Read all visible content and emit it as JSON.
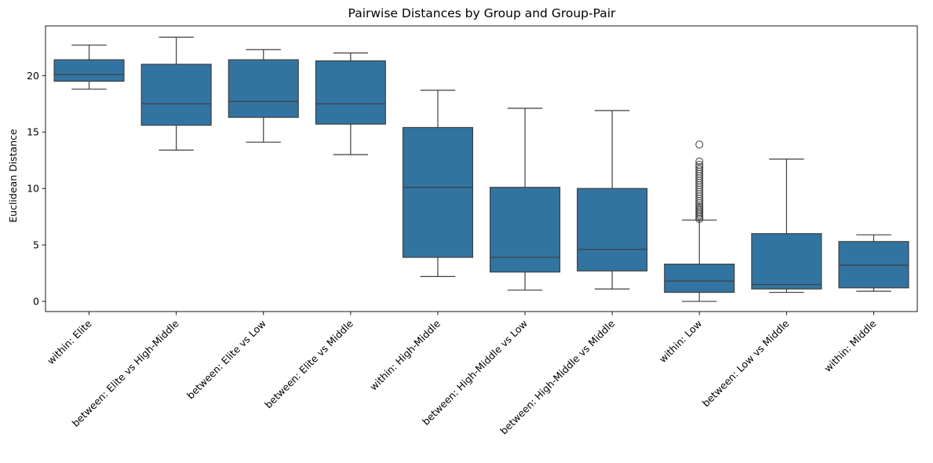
{
  "chart_data": {
    "type": "box",
    "title": "Pairwise Distances by Group and Group-Pair",
    "xlabel": "",
    "ylabel": "Euclidean Distance",
    "ylim": [
      -0.9,
      24.4
    ],
    "yticks": [
      0,
      5,
      10,
      15,
      20
    ],
    "grid": false,
    "color": "#3274a1",
    "categories": [
      "within: Elite",
      "between: Elite vs High-Middle",
      "between: Elite vs Low",
      "between: Elite vs Middle",
      "within: High-Middle",
      "between: High-Middle vs Low",
      "between: High-Middle vs Middle",
      "within: Low",
      "between: Low vs Middle",
      "within: Middle"
    ],
    "boxes": [
      {
        "whislo": 18.8,
        "q1": 19.5,
        "med": 20.1,
        "q3": 21.4,
        "whishi": 22.7,
        "fliers": []
      },
      {
        "whislo": 13.4,
        "q1": 15.6,
        "med": 17.5,
        "q3": 21.0,
        "whishi": 23.4,
        "fliers": []
      },
      {
        "whislo": 14.1,
        "q1": 16.3,
        "med": 17.7,
        "q3": 21.4,
        "whishi": 22.3,
        "fliers": []
      },
      {
        "whislo": 13.0,
        "q1": 15.7,
        "med": 17.5,
        "q3": 21.3,
        "whishi": 22.0,
        "fliers": []
      },
      {
        "whislo": 2.2,
        "q1": 3.9,
        "med": 10.1,
        "q3": 15.4,
        "whishi": 18.7,
        "fliers": []
      },
      {
        "whislo": 1.0,
        "q1": 2.6,
        "med": 3.9,
        "q3": 10.1,
        "whishi": 17.1,
        "fliers": []
      },
      {
        "whislo": 1.1,
        "q1": 2.7,
        "med": 4.6,
        "q3": 10.0,
        "whishi": 16.9,
        "fliers": []
      },
      {
        "whislo": 0.0,
        "q1": 0.8,
        "med": 1.8,
        "q3": 3.3,
        "whishi": 7.2,
        "fliers": [
          7.3,
          7.45,
          7.6,
          7.75,
          7.9,
          8.05,
          8.2,
          8.35,
          8.5,
          8.7,
          8.9,
          9.1,
          9.3,
          9.5,
          9.7,
          9.9,
          10.1,
          10.3,
          10.5,
          10.7,
          10.9,
          11.1,
          11.3,
          11.5,
          11.7,
          11.9,
          12.1,
          12.4,
          13.9
        ]
      },
      {
        "whislo": 0.8,
        "q1": 1.1,
        "med": 1.5,
        "q3": 6.0,
        "whishi": 12.6,
        "fliers": []
      },
      {
        "whislo": 0.9,
        "q1": 1.2,
        "med": 3.2,
        "q3": 5.3,
        "whishi": 5.9,
        "fliers": []
      }
    ]
  }
}
